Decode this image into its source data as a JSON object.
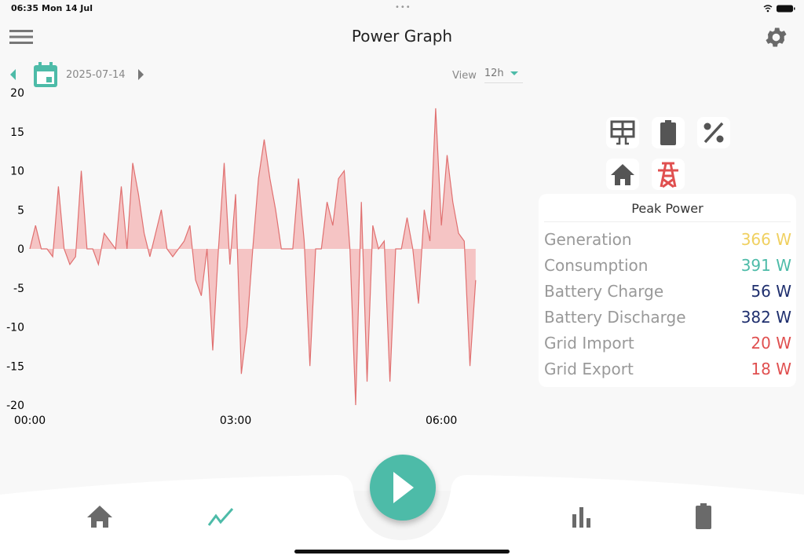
{
  "status_bar": {
    "time": "06:35",
    "date": "Mon 14 Jul"
  },
  "header": {
    "title": "Power Graph",
    "menu_icon": "hamburger-menu-icon",
    "settings_icon": "gear-icon"
  },
  "date_nav": {
    "date": "2025-07-14",
    "prev_icon": "caret-left-icon",
    "calendar_icon": "calendar-icon",
    "next_icon": "caret-right-icon"
  },
  "view": {
    "label": "View",
    "selected": "12h"
  },
  "filters": [
    {
      "icon": "solar-panel-icon"
    },
    {
      "icon": "battery-icon"
    },
    {
      "icon": "percent-icon"
    },
    {
      "icon": "home-icon"
    },
    {
      "icon": "transmission-tower-icon",
      "color": "#e05050"
    }
  ],
  "peak_power": {
    "title": "Peak Power",
    "rows": [
      {
        "label": "Generation",
        "value": "366 W",
        "color": "#f0d060"
      },
      {
        "label": "Consumption",
        "value": "391 W",
        "color": "#4dbba8"
      },
      {
        "label": "Battery Charge",
        "value": "56 W",
        "color": "#1f2f6e"
      },
      {
        "label": "Battery Discharge",
        "value": "382 W",
        "color": "#1f2f6e"
      },
      {
        "label": "Grid Import",
        "value": "20 W",
        "color": "#e05050"
      },
      {
        "label": "Grid Export",
        "value": "18 W",
        "color": "#e05050"
      }
    ]
  },
  "bottom_nav": {
    "items": [
      "home-icon",
      "chart-line-icon",
      "play-icon",
      "bar-chart-icon",
      "battery-icon"
    ],
    "active": "chart-line-icon",
    "accent": "#4dbba8"
  },
  "chart_data": {
    "type": "area",
    "x_start": "00:00",
    "x_step_minutes": 5,
    "x_ticks": [
      "00:00",
      "03:00",
      "06:00"
    ],
    "y_ticks": [
      20,
      15,
      10,
      5,
      0,
      -5,
      -10,
      -15,
      -20
    ],
    "ylim": [
      -20,
      20
    ],
    "grid": false,
    "color": "#e07070",
    "fill": "#f5c4c4",
    "values": [
      0,
      3,
      0,
      0,
      -1,
      8,
      0,
      -2,
      -1,
      10,
      0,
      0,
      -2,
      2,
      1,
      0,
      8,
      0,
      11,
      7,
      2,
      -1,
      2,
      5,
      0,
      -1,
      0,
      1,
      3,
      -4,
      -6,
      0,
      -13,
      0,
      11,
      -2,
      7,
      -16,
      -10,
      0,
      9,
      14,
      9,
      5,
      0,
      0,
      0,
      9,
      1,
      -15,
      0,
      0,
      6,
      3,
      9,
      10,
      0,
      -20,
      6,
      -17,
      3,
      0,
      1,
      -17,
      0,
      0,
      4,
      0,
      -7,
      5,
      1,
      18,
      3,
      12,
      6,
      2,
      1,
      -15,
      -4
    ]
  }
}
